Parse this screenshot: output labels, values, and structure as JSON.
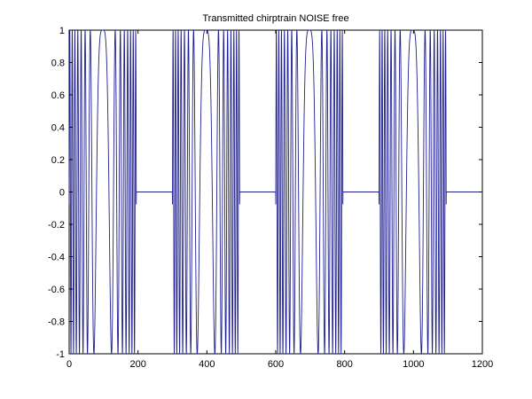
{
  "chart_data": {
    "type": "line",
    "title": "Transmitted chirptrain NOISE free",
    "xlabel": "",
    "ylabel": "",
    "xlim": [
      0,
      1200
    ],
    "ylim": [
      -1,
      1
    ],
    "xticks": [
      0,
      200,
      400,
      600,
      800,
      1000,
      1200
    ],
    "yticks": [
      1,
      0.8,
      0.6,
      0.4,
      0.2,
      0,
      -0.2,
      -0.4,
      -0.6,
      -0.8,
      -1
    ],
    "xtick_labels": [
      "0",
      "200",
      "400",
      "600",
      "800",
      "1000",
      "1200"
    ],
    "ytick_labels": [
      "1",
      "0.8",
      "0.6",
      "0.4",
      "0.2",
      "0",
      "-0.2",
      "-0.4",
      "-0.6",
      "-0.8",
      "-1"
    ],
    "grid": false,
    "series": [
      {
        "color": "#1f1f8f",
        "description_of_shape": "Repeating chirp pulses: each pulse is a symmetric frequency-swept cosine (amplitude 1) lasting ~195 samples, followed by zeros until the next pulse. Pulses start at 0, 300, 600, 900.",
        "pulses": [
          {
            "start": 0,
            "end": 195
          },
          {
            "start": 300,
            "end": 495
          },
          {
            "start": 600,
            "end": 795
          },
          {
            "start": 900,
            "end": 1095
          }
        ],
        "zero_segments": [
          {
            "start": 195,
            "end": 300
          },
          {
            "start": 495,
            "end": 600
          },
          {
            "start": 795,
            "end": 900
          },
          {
            "start": 1095,
            "end": 1200
          }
        ],
        "amplitude": 1
      }
    ]
  },
  "colors": {
    "line": "#1f1f8f",
    "axes": "#000000",
    "background": "#ffffff"
  }
}
